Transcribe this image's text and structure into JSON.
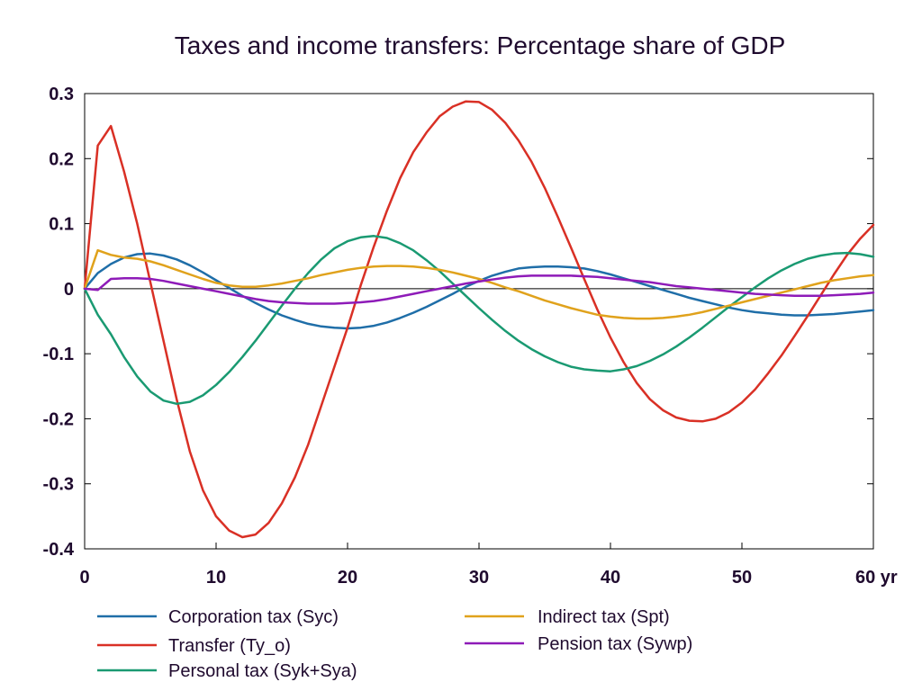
{
  "chart_data": {
    "type": "line",
    "title": "Taxes and income transfers: Percentage share of GDP",
    "x_unit_label": "yr",
    "xlim": [
      0,
      60
    ],
    "ylim": [
      -0.4,
      0.3
    ],
    "x_ticks": [
      0,
      10,
      20,
      30,
      40,
      50,
      60
    ],
    "x_tick_labels": [
      "0",
      "10",
      "20",
      "30",
      "40",
      "50",
      "60 yr"
    ],
    "y_ticks": [
      0.3,
      0.2,
      0.1,
      0,
      -0.1,
      -0.2,
      -0.3,
      -0.4
    ],
    "y_tick_labels": [
      "0.3",
      "0.2",
      "0.1",
      "0",
      "-0.1",
      "-0.2",
      "-0.3",
      "-0.4"
    ],
    "grid": false,
    "zero_line": true,
    "legend_position": "bottom",
    "x": [
      0,
      1,
      2,
      3,
      4,
      5,
      6,
      7,
      8,
      9,
      10,
      11,
      12,
      13,
      14,
      15,
      16,
      17,
      18,
      19,
      20,
      21,
      22,
      23,
      24,
      25,
      26,
      27,
      28,
      29,
      30,
      31,
      32,
      33,
      34,
      35,
      36,
      37,
      38,
      39,
      40,
      41,
      42,
      43,
      44,
      45,
      46,
      47,
      48,
      49,
      50,
      51,
      52,
      53,
      54,
      55,
      56,
      57,
      58,
      59,
      60
    ],
    "series": [
      {
        "name": "Corporation tax (Syc)",
        "color": "#1f6ea8",
        "values": [
          0,
          0.024,
          0.038,
          0.048,
          0.053,
          0.054,
          0.051,
          0.045,
          0.036,
          0.025,
          0.013,
          0.001,
          -0.011,
          -0.022,
          -0.032,
          -0.041,
          -0.048,
          -0.054,
          -0.058,
          -0.06,
          -0.061,
          -0.06,
          -0.057,
          -0.052,
          -0.045,
          -0.037,
          -0.028,
          -0.018,
          -0.008,
          0.003,
          0.012,
          0.02,
          0.026,
          0.031,
          0.033,
          0.034,
          0.034,
          0.033,
          0.031,
          0.027,
          0.022,
          0.016,
          0.01,
          0.004,
          -0.002,
          -0.008,
          -0.014,
          -0.019,
          -0.024,
          -0.029,
          -0.033,
          -0.036,
          -0.038,
          -0.04,
          -0.041,
          -0.041,
          -0.04,
          -0.039,
          -0.037,
          -0.035,
          -0.033
        ]
      },
      {
        "name": "Transfer (Ty_o)",
        "color": "#d93025",
        "values": [
          0,
          0.22,
          0.25,
          0.18,
          0.1,
          0.01,
          -0.08,
          -0.17,
          -0.25,
          -0.31,
          -0.35,
          -0.372,
          -0.382,
          -0.378,
          -0.36,
          -0.33,
          -0.29,
          -0.24,
          -0.18,
          -0.12,
          -0.06,
          0.005,
          0.065,
          0.12,
          0.17,
          0.21,
          0.24,
          0.265,
          0.28,
          0.288,
          0.287,
          0.275,
          0.255,
          0.228,
          0.195,
          0.155,
          0.11,
          0.063,
          0.015,
          -0.032,
          -0.075,
          -0.113,
          -0.145,
          -0.17,
          -0.187,
          -0.198,
          -0.203,
          -0.204,
          -0.2,
          -0.19,
          -0.175,
          -0.155,
          -0.13,
          -0.103,
          -0.073,
          -0.042,
          -0.01,
          0.022,
          0.052,
          0.077,
          0.098
        ]
      },
      {
        "name": "Personal tax (Syk+Sya)",
        "color": "#1a9a72",
        "values": [
          0,
          -0.04,
          -0.07,
          -0.105,
          -0.135,
          -0.158,
          -0.172,
          -0.177,
          -0.174,
          -0.164,
          -0.148,
          -0.128,
          -0.105,
          -0.08,
          -0.053,
          -0.026,
          0,
          0.024,
          0.045,
          0.062,
          0.073,
          0.079,
          0.081,
          0.078,
          0.07,
          0.059,
          0.044,
          0.027,
          0.008,
          -0.011,
          -0.03,
          -0.048,
          -0.065,
          -0.08,
          -0.093,
          -0.104,
          -0.113,
          -0.12,
          -0.124,
          -0.126,
          -0.127,
          -0.124,
          -0.119,
          -0.111,
          -0.101,
          -0.089,
          -0.075,
          -0.06,
          -0.044,
          -0.028,
          -0.013,
          0.002,
          0.016,
          0.028,
          0.038,
          0.046,
          0.051,
          0.054,
          0.055,
          0.053,
          0.049
        ]
      },
      {
        "name": "Indirect tax (Spt)",
        "color": "#e0a21c",
        "values": [
          0,
          0.059,
          0.052,
          0.048,
          0.046,
          0.042,
          0.036,
          0.029,
          0.022,
          0.015,
          0.009,
          0.005,
          0.003,
          0.003,
          0.005,
          0.008,
          0.012,
          0.016,
          0.021,
          0.025,
          0.029,
          0.032,
          0.034,
          0.035,
          0.035,
          0.034,
          0.032,
          0.029,
          0.025,
          0.02,
          0.015,
          0.009,
          0.002,
          -0.004,
          -0.011,
          -0.018,
          -0.024,
          -0.03,
          -0.035,
          -0.04,
          -0.043,
          -0.045,
          -0.046,
          -0.046,
          -0.045,
          -0.043,
          -0.04,
          -0.036,
          -0.031,
          -0.026,
          -0.021,
          -0.016,
          -0.011,
          -0.006,
          -0.001,
          0.004,
          0.009,
          0.013,
          0.016,
          0.019,
          0.021
        ]
      },
      {
        "name": "Pension tax (Sywp)",
        "color": "#8e1bb8",
        "values": [
          0,
          -0.002,
          0.015,
          0.016,
          0.016,
          0.015,
          0.012,
          0.008,
          0.004,
          0,
          -0.004,
          -0.008,
          -0.012,
          -0.016,
          -0.019,
          -0.021,
          -0.022,
          -0.023,
          -0.023,
          -0.023,
          -0.022,
          -0.021,
          -0.019,
          -0.016,
          -0.012,
          -0.008,
          -0.004,
          0,
          0.004,
          0.008,
          0.011,
          0.014,
          0.017,
          0.019,
          0.02,
          0.02,
          0.02,
          0.02,
          0.019,
          0.018,
          0.016,
          0.014,
          0.012,
          0.01,
          0.007,
          0.004,
          0.002,
          0,
          -0.002,
          -0.004,
          -0.006,
          -0.008,
          -0.009,
          -0.01,
          -0.011,
          -0.011,
          -0.011,
          -0.01,
          -0.009,
          -0.008,
          -0.006
        ]
      }
    ]
  }
}
